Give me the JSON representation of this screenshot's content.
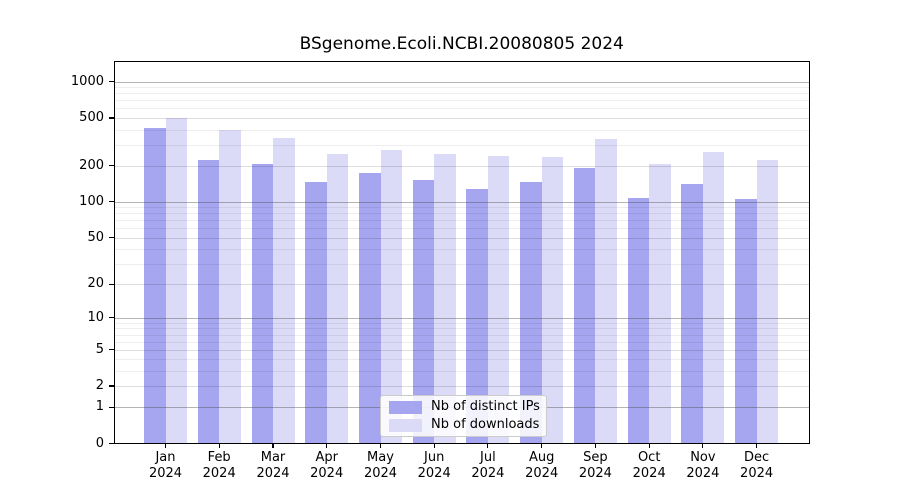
{
  "title": "BSgenome.Ecoli.NCBI.20080805 2024",
  "chart_data": {
    "type": "bar",
    "title": "BSgenome.Ecoli.NCBI.20080805 2024",
    "categories": [
      "Jan",
      "Feb",
      "Mar",
      "Apr",
      "May",
      "Jun",
      "Jul",
      "Aug",
      "Sep",
      "Oct",
      "Nov",
      "Dec"
    ],
    "year": "2024",
    "series": [
      {
        "key": "distinct-ips",
        "name": "Nb of distinct IPs",
        "color": "#a5a5f0",
        "values": [
          415,
          222,
          207,
          146,
          175,
          152,
          127,
          146,
          192,
          108,
          140,
          106
        ]
      },
      {
        "key": "downloads",
        "name": "Nb of downloads",
        "color": "#dbdbf8",
        "values": [
          498,
          397,
          339,
          252,
          270,
          253,
          242,
          236,
          335,
          206,
          261,
          223
        ]
      }
    ],
    "yscale": "log1p",
    "ylim": [
      0,
      1500
    ],
    "yticks": [
      0,
      1,
      2,
      5,
      10,
      20,
      50,
      100,
      200,
      500,
      1000
    ],
    "decade_gridlines": [
      1,
      10,
      100,
      1000
    ],
    "minor_gridlines": [
      3,
      4,
      6,
      7,
      8,
      9,
      30,
      40,
      60,
      70,
      80,
      90,
      300,
      400,
      600,
      700,
      800,
      900
    ],
    "xlabel": "",
    "ylabel": "",
    "grid": true,
    "legend_position": "lower center"
  }
}
